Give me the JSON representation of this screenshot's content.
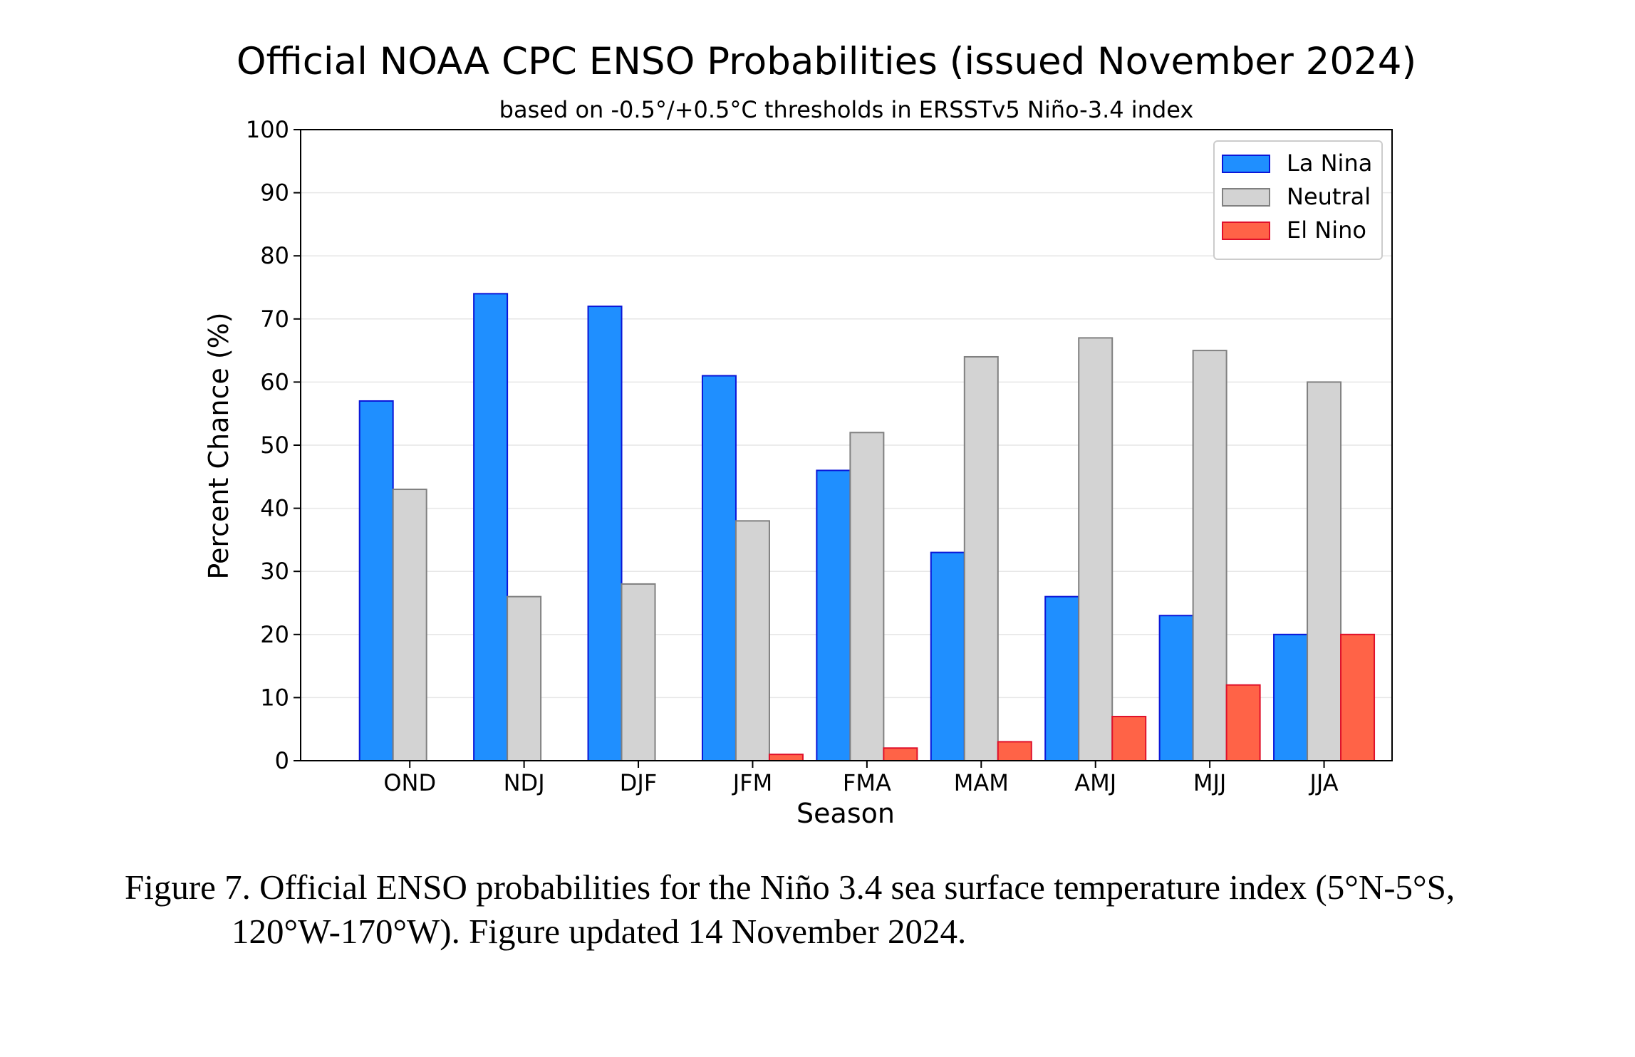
{
  "chart_data": {
    "type": "bar",
    "title": "Official NOAA CPC ENSO Probabilities (issued November 2024)",
    "subtitle": "based on -0.5°/+0.5°C thresholds in ERSSTv5 Niño-3.4 index",
    "xlabel": "Season",
    "ylabel": "Percent Chance (%)",
    "ylim": [
      0,
      100
    ],
    "yticks": [
      0,
      10,
      20,
      30,
      40,
      50,
      60,
      70,
      80,
      90,
      100
    ],
    "grid": true,
    "legend_position": "top-right",
    "categories": [
      "OND",
      "NDJ",
      "DJF",
      "JFM",
      "FMA",
      "MAM",
      "AMJ",
      "MJJ",
      "JJA"
    ],
    "series": [
      {
        "name": "La Nina",
        "color": "#1f8fff",
        "edge": "#0b16d8",
        "values": [
          57,
          74,
          72,
          61,
          46,
          33,
          26,
          23,
          20
        ]
      },
      {
        "name": "Neutral",
        "color": "#d3d3d3",
        "edge": "#808080",
        "values": [
          43,
          26,
          28,
          38,
          52,
          64,
          67,
          65,
          60
        ]
      },
      {
        "name": "El Nino",
        "color": "#ff6347",
        "edge": "#e0102a",
        "values": [
          0,
          0,
          0,
          1,
          2,
          3,
          7,
          12,
          20
        ]
      }
    ]
  },
  "caption": {
    "line1": "Figure 7. Official ENSO probabilities for the Niño 3.4 sea surface temperature index (5°N-5°S,",
    "line2": "120°W-170°W). Figure updated 14 November 2024."
  }
}
